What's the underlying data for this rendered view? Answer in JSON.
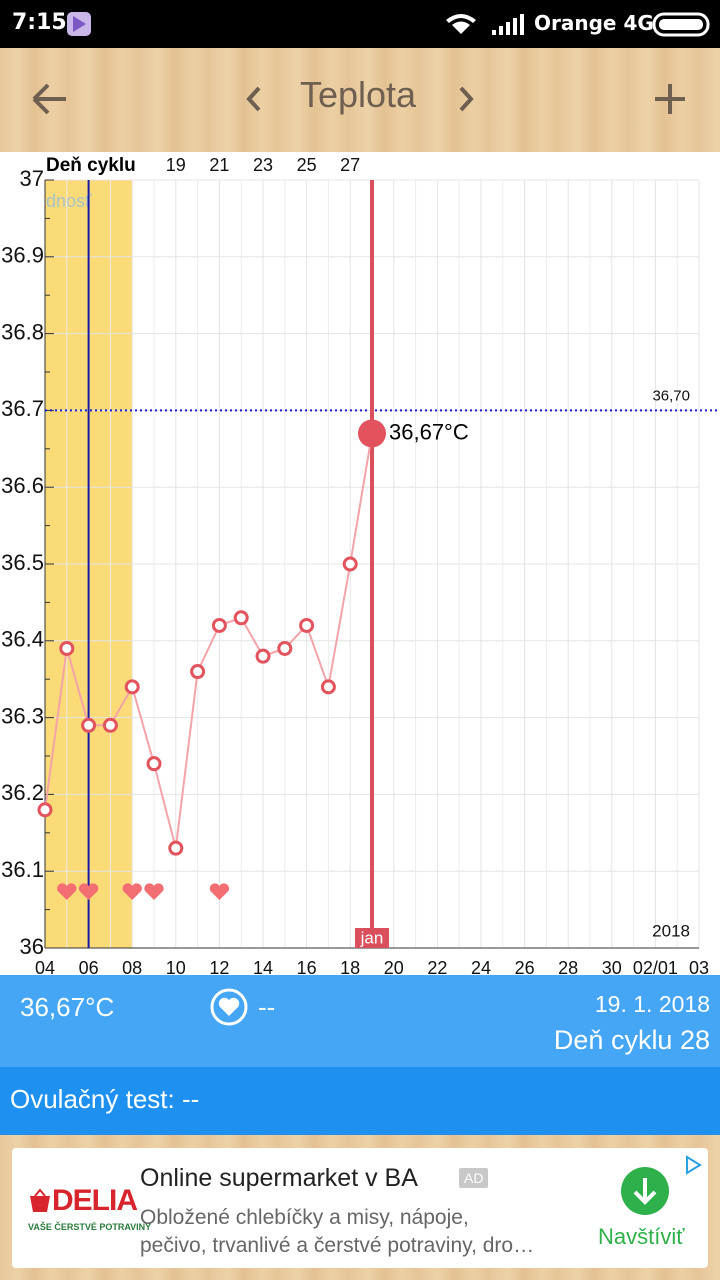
{
  "status_bar": {
    "time": "7:15",
    "carrier": "Orange 4G"
  },
  "app_bar": {
    "title": "Teplota"
  },
  "chart_data": {
    "type": "line",
    "x2label": "Deň cyklu",
    "x": [
      4,
      5,
      6,
      7,
      8,
      9,
      10,
      11,
      12,
      13,
      14,
      15,
      16,
      17,
      18,
      19
    ],
    "values": [
      36.18,
      36.39,
      36.29,
      36.29,
      36.34,
      36.24,
      36.13,
      36.36,
      36.42,
      36.43,
      36.38,
      36.39,
      36.42,
      36.34,
      36.5,
      36.67
    ],
    "value_labels": [
      null,
      null,
      null,
      null,
      null,
      null,
      null,
      null,
      null,
      null,
      null,
      null,
      null,
      null,
      null,
      "36,67°C"
    ],
    "color": "#f4a3a8",
    "point_color": "#e2535e",
    "xlim": [
      4,
      34
    ],
    "xticks": [
      {
        "value": 4,
        "label": "04"
      },
      {
        "value": 6,
        "label": "06"
      },
      {
        "value": 8,
        "label": "08"
      },
      10,
      12,
      14,
      16,
      18,
      20,
      22,
      24,
      26,
      28,
      30,
      {
        "value": 32,
        "label": "02/01"
      },
      {
        "value": 34,
        "label": "03"
      }
    ],
    "x2lim": [
      13,
      43
    ],
    "x2ticks": [
      19,
      21,
      23,
      25,
      27
    ],
    "ylim": [
      36,
      37
    ],
    "yticks": [
      36,
      36.1,
      36.2,
      36.3,
      36.4,
      36.5,
      36.6,
      36.7,
      36.8,
      36.9,
      37
    ],
    "grid": true,
    "reference_line": {
      "value": 36.7,
      "label": "36,70",
      "color": "#1a1ad0"
    },
    "fertile_band": {
      "x": [
        4,
        8
      ],
      "label": "dnosť",
      "color": "#fadb78"
    },
    "marker_line_x": 6,
    "marker_line_color": "#1a1aa8",
    "selected": {
      "x": 19,
      "month_label": "jan",
      "color": "#d9505c"
    },
    "hearts_x": [
      5,
      6,
      8,
      9,
      12
    ],
    "heart_color": "#f26e72",
    "year_label": "2018"
  },
  "summary": {
    "temperature": "36,67°C",
    "intercourse": "--",
    "date": "19. 1. 2018",
    "cycle_day": "Deň cyklu 28"
  },
  "ovulation_test": "Ovulačný test: --",
  "ad": {
    "brand": "DELIA",
    "brand_tagline": "VAŠE ČERSTVÉ POTRAVINY",
    "title": "Online supermarket v BA",
    "badge": "AD",
    "description_lines": [
      "Obložené chlebíčky a misy, nápoje,",
      "pečivo, trvanlivé a čerstvé potraviny, dro…"
    ],
    "action": "Navštíviť"
  }
}
